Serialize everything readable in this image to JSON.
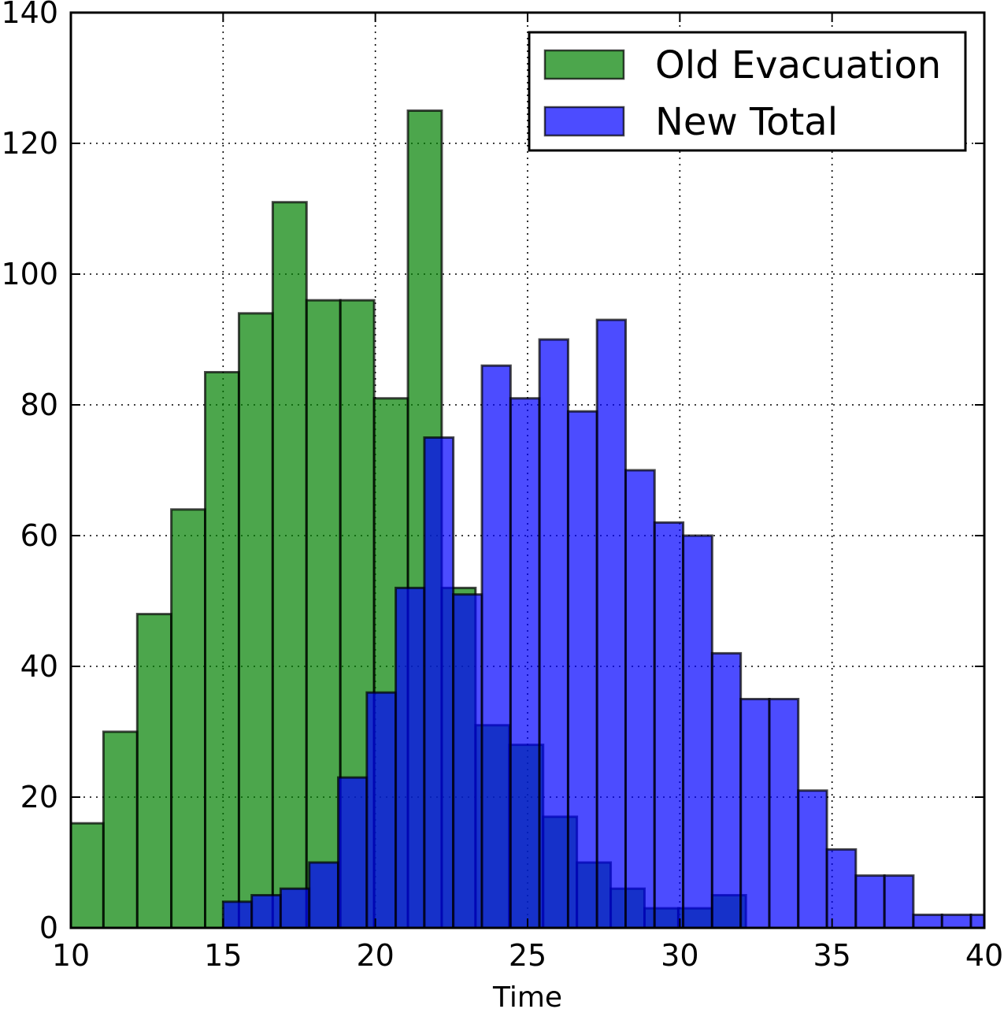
{
  "chart_data": {
    "type": "bar",
    "xlabel": "Time",
    "ylabel": "",
    "xlim": [
      10,
      40
    ],
    "ylim": [
      0,
      140
    ],
    "xticks": [
      10,
      15,
      20,
      25,
      30,
      35,
      40
    ],
    "yticks": [
      0,
      20,
      40,
      60,
      80,
      100,
      120,
      140
    ],
    "grid": true,
    "legend_position": "top-right",
    "series": [
      {
        "name": "Old Evacuation",
        "color": "#008000",
        "bins": [
          {
            "x0": 10.0,
            "x1": 11.07,
            "count": 16
          },
          {
            "x0": 11.07,
            "x1": 12.18,
            "count": 30
          },
          {
            "x0": 12.18,
            "x1": 13.3,
            "count": 48
          },
          {
            "x0": 13.3,
            "x1": 14.41,
            "count": 64
          },
          {
            "x0": 14.41,
            "x1": 15.52,
            "count": 85
          },
          {
            "x0": 15.52,
            "x1": 16.63,
            "count": 94
          },
          {
            "x0": 16.63,
            "x1": 17.74,
            "count": 111
          },
          {
            "x0": 17.74,
            "x1": 18.85,
            "count": 96
          },
          {
            "x0": 18.85,
            "x1": 19.96,
            "count": 96
          },
          {
            "x0": 19.96,
            "x1": 21.07,
            "count": 81
          },
          {
            "x0": 21.07,
            "x1": 22.18,
            "count": 125
          },
          {
            "x0": 22.18,
            "x1": 23.29,
            "count": 52
          },
          {
            "x0": 23.29,
            "x1": 24.4,
            "count": 31
          },
          {
            "x0": 24.4,
            "x1": 25.51,
            "count": 28
          },
          {
            "x0": 25.51,
            "x1": 26.62,
            "count": 17
          },
          {
            "x0": 26.62,
            "x1": 27.73,
            "count": 10
          },
          {
            "x0": 27.73,
            "x1": 28.84,
            "count": 6
          },
          {
            "x0": 28.84,
            "x1": 29.95,
            "count": 3
          },
          {
            "x0": 29.95,
            "x1": 31.06,
            "count": 3
          },
          {
            "x0": 31.06,
            "x1": 32.17,
            "count": 5
          }
        ]
      },
      {
        "name": "New Total",
        "color": "#0000ff",
        "bins": [
          {
            "x0": 15.0,
            "x1": 15.94,
            "count": 4
          },
          {
            "x0": 15.94,
            "x1": 16.89,
            "count": 5
          },
          {
            "x0": 16.89,
            "x1": 17.83,
            "count": 6
          },
          {
            "x0": 17.83,
            "x1": 18.78,
            "count": 10
          },
          {
            "x0": 18.78,
            "x1": 19.72,
            "count": 23
          },
          {
            "x0": 19.72,
            "x1": 20.67,
            "count": 36
          },
          {
            "x0": 20.67,
            "x1": 21.61,
            "count": 52
          },
          {
            "x0": 21.61,
            "x1": 22.56,
            "count": 75
          },
          {
            "x0": 22.56,
            "x1": 23.5,
            "count": 51
          },
          {
            "x0": 23.5,
            "x1": 24.44,
            "count": 86
          },
          {
            "x0": 24.44,
            "x1": 25.39,
            "count": 81
          },
          {
            "x0": 25.39,
            "x1": 26.33,
            "count": 90
          },
          {
            "x0": 26.33,
            "x1": 27.28,
            "count": 79
          },
          {
            "x0": 27.28,
            "x1": 28.22,
            "count": 93
          },
          {
            "x0": 28.22,
            "x1": 29.17,
            "count": 70
          },
          {
            "x0": 29.17,
            "x1": 30.11,
            "count": 62
          },
          {
            "x0": 30.11,
            "x1": 31.06,
            "count": 60
          },
          {
            "x0": 31.06,
            "x1": 32.0,
            "count": 42
          },
          {
            "x0": 32.0,
            "x1": 32.94,
            "count": 35
          },
          {
            "x0": 32.94,
            "x1": 33.89,
            "count": 35
          },
          {
            "x0": 33.89,
            "x1": 34.83,
            "count": 21
          },
          {
            "x0": 34.83,
            "x1": 35.78,
            "count": 12
          },
          {
            "x0": 35.78,
            "x1": 36.72,
            "count": 8
          },
          {
            "x0": 36.72,
            "x1": 37.67,
            "count": 8
          },
          {
            "x0": 37.67,
            "x1": 38.61,
            "count": 2
          },
          {
            "x0": 38.61,
            "x1": 39.56,
            "count": 2
          },
          {
            "x0": 39.56,
            "x1": 40.5,
            "count": 2
          }
        ]
      }
    ]
  }
}
